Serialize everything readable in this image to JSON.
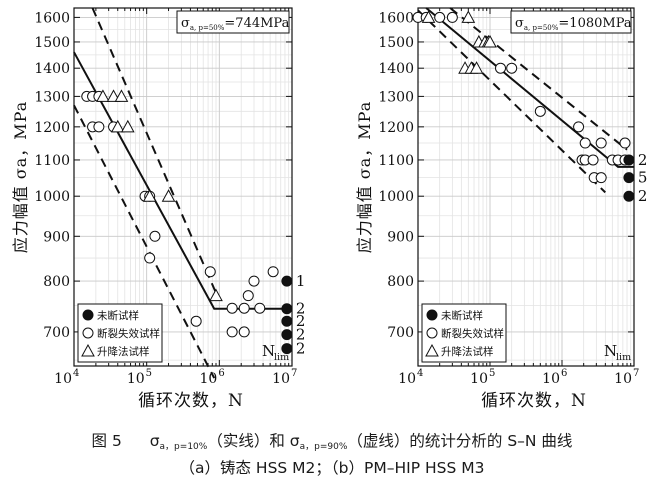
{
  "chart_data": [
    {
      "type": "scatter",
      "panel_id": "(a)",
      "title": "",
      "xlabel": "循环次数，N",
      "ylabel": "应力幅值 σa，MPa",
      "x_scale": "log",
      "y_scale": "log",
      "xlim": [
        10000,
        10000000
      ],
      "ylim": [
        640,
        1640
      ],
      "x_ticks": [
        10000,
        100000,
        1000000,
        10000000
      ],
      "x_tick_labels": [
        [
          "10",
          "4"
        ],
        [
          "10",
          "5"
        ],
        [
          "10",
          "6"
        ],
        [
          "10",
          "7"
        ]
      ],
      "y_ticks": [
        700,
        800,
        900,
        1000,
        1100,
        1200,
        1300,
        1400,
        1500,
        1600
      ],
      "y_tick_labels": [
        "700",
        "800",
        "900",
        "1000",
        "1100",
        "1200",
        "1300",
        "1400",
        "1500",
        "1600"
      ],
      "grid": true,
      "annotation": {
        "sigma": "σ",
        "sub": "a, p=50%",
        "value": "=744MPa"
      },
      "legend": {
        "position": "bottom-left",
        "entries": [
          {
            "marker": "filled-circle",
            "label": "未断试样"
          },
          {
            "marker": "open-circle",
            "label": "断裂失效试样"
          },
          {
            "marker": "open-triangle",
            "label": "升降法试样"
          }
        ]
      },
      "nlim_label": {
        "main": "N",
        "sub": "lim"
      },
      "curves": {
        "p50": {
          "style": "solid",
          "points": [
            [
              10000,
              1460
            ],
            [
              850000,
              744
            ],
            [
              10000000,
              744
            ]
          ]
        },
        "p10": {
          "style": "dashed",
          "points": [
            [
              18000,
              1640
            ],
            [
              1000000,
              760
            ]
          ]
        },
        "p90": {
          "style": "dashed",
          "points": [
            [
              10000,
              1270
            ],
            [
              850000,
              620
            ]
          ]
        }
      },
      "series": [
        {
          "name": "断裂失效试样",
          "marker": "open-circle",
          "points": [
            [
              15000,
              1300
            ],
            [
              18000,
              1300
            ],
            [
              22000,
              1300
            ],
            [
              18000,
              1200
            ],
            [
              22000,
              1200
            ],
            [
              35000,
              1200
            ],
            [
              95000,
              1000
            ],
            [
              110000,
              1000
            ],
            [
              110000,
              850
            ],
            [
              130000,
              900
            ],
            [
              480000,
              720
            ],
            [
              750000,
              820
            ],
            [
              1500000,
              745
            ],
            [
              1500000,
              700
            ],
            [
              2200000,
              745
            ],
            [
              2200000,
              700
            ],
            [
              2500000,
              770
            ],
            [
              3000000,
              800
            ],
            [
              3600000,
              745
            ],
            [
              5500000,
              820
            ]
          ]
        },
        {
          "name": "升降法试样",
          "marker": "open-triangle",
          "points": [
            [
              25000,
              1300
            ],
            [
              35000,
              1300
            ],
            [
              45000,
              1300
            ],
            [
              40000,
              1200
            ],
            [
              55000,
              1200
            ],
            [
              110000,
              1000
            ],
            [
              200000,
              1000
            ],
            [
              900000,
              770
            ]
          ]
        },
        {
          "name": "未断试样",
          "marker": "filled-circle",
          "points": [
            [
              8500000,
              800
            ],
            [
              8500000,
              744
            ],
            [
              8500000,
              720
            ],
            [
              8500000,
              695
            ],
            [
              8500000,
              670
            ]
          ]
        }
      ],
      "count_labels": [
        {
          "y": 800,
          "text": "1"
        },
        {
          "y": 744,
          "text": "2"
        },
        {
          "y": 720,
          "text": "2"
        },
        {
          "y": 695,
          "text": "2"
        },
        {
          "y": 670,
          "text": "2"
        }
      ]
    },
    {
      "type": "scatter",
      "panel_id": "(b)",
      "title": "",
      "xlabel": "循环次数，N",
      "ylabel": "应力幅值 σa，MPa",
      "x_scale": "log",
      "y_scale": "log",
      "xlim": [
        10000,
        10000000
      ],
      "ylim": [
        640,
        1640
      ],
      "x_ticks": [
        10000,
        100000,
        1000000,
        10000000
      ],
      "x_tick_labels": [
        [
          "10",
          "4"
        ],
        [
          "10",
          "5"
        ],
        [
          "10",
          "6"
        ],
        [
          "10",
          "7"
        ]
      ],
      "y_ticks": [
        700,
        800,
        900,
        1000,
        1100,
        1200,
        1300,
        1400,
        1500,
        1600
      ],
      "y_tick_labels": [
        "700",
        "800",
        "900",
        "1000",
        "1100",
        "1200",
        "1300",
        "1400",
        "1500",
        "1600"
      ],
      "grid": true,
      "annotation": {
        "sigma": "σ",
        "sub": "a, p=50%",
        "value": "=1080MPa"
      },
      "legend": {
        "position": "bottom-left",
        "entries": [
          {
            "marker": "filled-circle",
            "label": "未断试样"
          },
          {
            "marker": "open-circle",
            "label": "断裂失效试样"
          },
          {
            "marker": "open-triangle",
            "label": "升降法试样"
          }
        ]
      },
      "nlim_label": {
        "main": "N",
        "sub": "lim"
      },
      "curves": {
        "p50": {
          "style": "solid",
          "points": [
            [
              13000,
              1640
            ],
            [
              6000000,
              1080
            ],
            [
              10000000,
              1080
            ]
          ]
        },
        "p10": {
          "style": "dashed",
          "points": [
            [
              28000,
              1640
            ],
            [
              8000000,
              1130
            ]
          ]
        },
        "p90": {
          "style": "dashed",
          "points": [
            [
              10000,
              1630
            ],
            [
              4000000,
              1010
            ]
          ]
        }
      },
      "series": [
        {
          "name": "断裂失效试样",
          "marker": "open-circle",
          "points": [
            [
              10000,
              1600
            ],
            [
              13000,
              1600
            ],
            [
              20000,
              1600
            ],
            [
              30000,
              1600
            ],
            [
              140000,
              1400
            ],
            [
              200000,
              1400
            ],
            [
              500000,
              1250
            ],
            [
              1700000,
              1200
            ],
            [
              1900000,
              1100
            ],
            [
              2100000,
              1100
            ],
            [
              2100000,
              1150
            ],
            [
              2700000,
              1100
            ],
            [
              2800000,
              1050
            ],
            [
              3500000,
              1050
            ],
            [
              3500000,
              1150
            ],
            [
              5000000,
              1100
            ],
            [
              6000000,
              1100
            ],
            [
              7500000,
              1100
            ],
            [
              7500000,
              1150
            ]
          ]
        },
        {
          "name": "升降法试样",
          "marker": "open-triangle",
          "points": [
            [
              14000,
              1600
            ],
            [
              50000,
              1600
            ],
            [
              45000,
              1400
            ],
            [
              55000,
              1400
            ],
            [
              65000,
              1400
            ],
            [
              70000,
              1500
            ],
            [
              85000,
              1500
            ],
            [
              95000,
              1500
            ],
            [
              100000,
              1500
            ]
          ]
        },
        {
          "name": "未断试样",
          "marker": "filled-circle",
          "points": [
            [
              8500000,
              1100
            ],
            [
              8500000,
              1050
            ],
            [
              8500000,
              1000
            ]
          ]
        }
      ],
      "count_labels": [
        {
          "y": 1100,
          "text": "2"
        },
        {
          "y": 1050,
          "text": "5"
        },
        {
          "y": 1000,
          "text": "2"
        }
      ]
    }
  ],
  "caption": {
    "line1": {
      "fig_label": "图 5",
      "sigma": "σ",
      "sub1": "a，p=10%",
      "text1": "（实线）和",
      "sub2": "a，p=90%",
      "text2": "（虚线）的统计分析的 S–N 曲线"
    },
    "line2": "（a）铸态 HSS M2；（b）PM–HIP HSS M3"
  }
}
